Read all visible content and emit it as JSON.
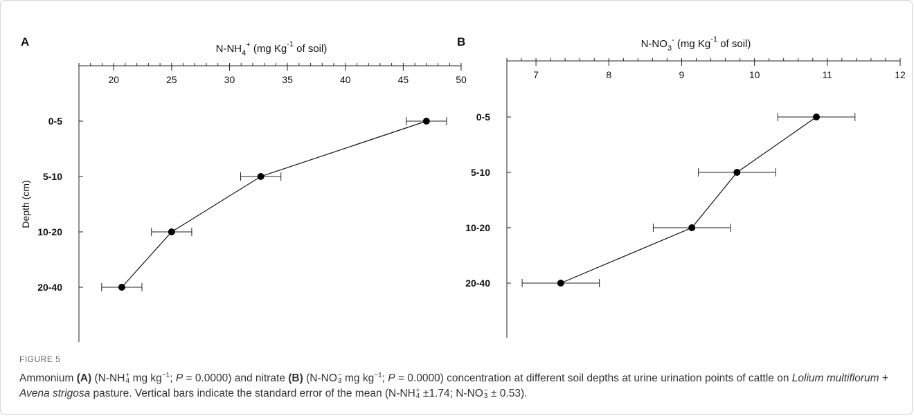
{
  "figure_label": "FIGURE 5",
  "caption": {
    "p1": "Ammonium ",
    "A": "(A)",
    "p2": " (N-NH",
    "sub4": "4",
    "supplus": "+",
    "p3": " mg kg",
    "supneg1": "−1",
    "p4": "; ",
    "P": "P",
    "p5": " = 0.0000) and nitrate ",
    "B": "(B)",
    "p6": " (N-NO",
    "sub3": "3",
    "supminus": "−",
    "p7": " mg kg",
    "p8": "; ",
    "p9": " = 0.0000) concentration at different soil depths at urine urination points of cattle on ",
    "species1": "Lolium multiflorum",
    "p10": " + ",
    "species2": "Avena strigosa",
    "p11": " pasture. Vertical bars indicate the standard error of the mean (N-NH",
    "p12": " ±1.74; N-NO",
    "p13": " ± 0.53)."
  },
  "chart_data": [
    {
      "panel": "A",
      "type": "line",
      "title_main": "N-NH",
      "title_sub": "4",
      "title_sup": "+",
      "title_unit_pre": " (mg Kg",
      "title_unit_sup": "-1",
      "title_unit_post": " of soil)",
      "ylabel": "Depth (cm)",
      "categories": [
        "0-5",
        "5-10",
        "10-20",
        "20-40"
      ],
      "values": [
        47.0,
        32.7,
        25.0,
        20.7
      ],
      "errors": [
        1.74,
        1.74,
        1.74,
        1.74
      ],
      "xlim": [
        17,
        50
      ],
      "xticks": [
        20,
        25,
        30,
        35,
        40,
        45,
        50
      ],
      "minor_step": 1,
      "axis_position": "top",
      "grid": false
    },
    {
      "panel": "B",
      "type": "line",
      "title_main": "N-NO",
      "title_sub": "3",
      "title_sup": "-",
      "title_unit_pre": " (mg Kg",
      "title_unit_sup": "-1",
      "title_unit_post": " of soil)",
      "ylabel": "",
      "categories": [
        "0-5",
        "5-10",
        "10-20",
        "20-40"
      ],
      "values": [
        10.85,
        9.76,
        9.14,
        7.34
      ],
      "errors": [
        0.53,
        0.53,
        0.53,
        0.53
      ],
      "xlim": [
        6.6,
        12
      ],
      "xticks": [
        7,
        8,
        9,
        10,
        11,
        12
      ],
      "minor_step": 0.2,
      "axis_position": "top",
      "grid": false
    }
  ]
}
